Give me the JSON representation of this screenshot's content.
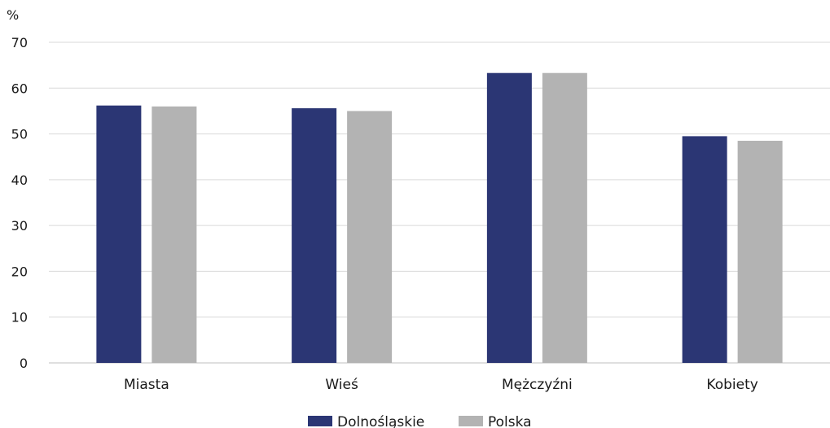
{
  "chart_data": {
    "type": "bar",
    "y_unit": "%",
    "categories": [
      "Miasta",
      "Wieś",
      "Mężczyźni",
      "Kobiety"
    ],
    "series": [
      {
        "name": "Dolnośląskie",
        "color": "#2b3674",
        "values": [
          56.2,
          55.6,
          63.3,
          49.5
        ]
      },
      {
        "name": "Polska",
        "color": "#b3b3b3",
        "values": [
          56.0,
          55.0,
          63.3,
          48.5
        ]
      }
    ],
    "ylim": [
      0,
      70
    ],
    "yticks": [
      0,
      10,
      20,
      30,
      40,
      50,
      60,
      70
    ],
    "grid": true,
    "legend_position": "bottom-center"
  }
}
